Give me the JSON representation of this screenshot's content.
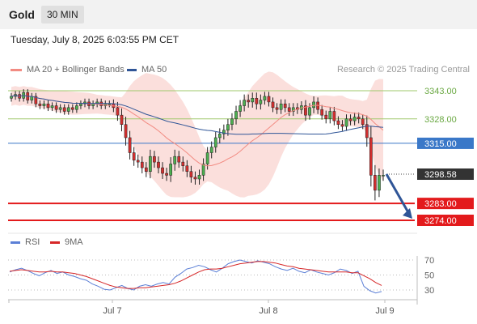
{
  "header": {
    "title": "Gold",
    "timeframe": "30 MIN"
  },
  "timestamp": "Tuesday, July 8, 2025 6:03:55 PM CET",
  "legend": {
    "ma20": {
      "label": "MA 20 + Bollinger Bands",
      "color": "#f28b82"
    },
    "ma50": {
      "label": "MA 50",
      "color": "#2f5597"
    }
  },
  "credit": "Research © 2025 Trading Central",
  "rsi_legend": {
    "rsi": {
      "label": "RSI",
      "color": "#5b7fd6"
    },
    "ma9": {
      "label": "9MA",
      "color": "#d62728"
    }
  },
  "chart_data": [
    {
      "type": "candlestick",
      "ylim": [
        3260,
        3360
      ],
      "x_ticks": [
        "Jul 7",
        "Jul 8",
        "Jul 9"
      ],
      "current_price": {
        "value": 3298.58,
        "label": "3298.58"
      },
      "levels": [
        {
          "value": 3343.0,
          "label": "3343.00",
          "kind": "resistance"
        },
        {
          "value": 3328.0,
          "label": "3328.00",
          "kind": "resistance"
        },
        {
          "value": 3315.0,
          "label": "3315.00",
          "kind": "pivot"
        },
        {
          "value": 3283.0,
          "label": "3283.00",
          "kind": "support"
        },
        {
          "value": 3274.0,
          "label": "3274.00",
          "kind": "support"
        }
      ],
      "forecast_arrow": {
        "from": 3298.58,
        "to": 3274.0
      },
      "close": [
        3340,
        3341,
        3339,
        3342,
        3338,
        3340,
        3336,
        3335,
        3336,
        3334,
        3335,
        3333,
        3334,
        3332,
        3334,
        3333,
        3335,
        3336,
        3337,
        3335,
        3336,
        3337,
        3335,
        3336,
        3336,
        3334,
        3330,
        3325,
        3318,
        3310,
        3306,
        3305,
        3302,
        3300,
        3308,
        3305,
        3302,
        3299,
        3298,
        3304,
        3308,
        3305,
        3303,
        3300,
        3297,
        3296,
        3298,
        3304,
        3310,
        3313,
        3318,
        3320,
        3322,
        3325,
        3328,
        3332,
        3335,
        3338,
        3337,
        3339,
        3336,
        3338,
        3340,
        3337,
        3334,
        3333,
        3336,
        3334,
        3332,
        3334,
        3333,
        3335,
        3330,
        3334,
        3337,
        3333,
        3330,
        3328,
        3332,
        3327,
        3325,
        3324,
        3328,
        3327,
        3329,
        3328,
        3325,
        3318,
        3298,
        3290,
        3298,
        3298
      ],
      "volatility": [
        3,
        3,
        3,
        3,
        3,
        3,
        3,
        3,
        3,
        3,
        3,
        3,
        3,
        3,
        3,
        3,
        3,
        3,
        3,
        3,
        3,
        3,
        3,
        3,
        3,
        4,
        5,
        6,
        7,
        6,
        5,
        5,
        5,
        5,
        6,
        5,
        5,
        5,
        5,
        6,
        6,
        5,
        5,
        5,
        5,
        5,
        5,
        5,
        5,
        5,
        5,
        5,
        5,
        5,
        5,
        5,
        5,
        5,
        5,
        5,
        5,
        5,
        4,
        4,
        4,
        4,
        4,
        4,
        4,
        4,
        4,
        4,
        5,
        4,
        5,
        4,
        4,
        4,
        4,
        4,
        4,
        4,
        4,
        4,
        4,
        4,
        4,
        8,
        10,
        9,
        6,
        5
      ]
    },
    {
      "type": "line",
      "title": "RSI",
      "ylim": [
        20,
        80
      ],
      "y_ticks": [
        70,
        50,
        30
      ],
      "series": [
        {
          "name": "RSI",
          "values": [
            54,
            57,
            59,
            56,
            52,
            49,
            53,
            56,
            52,
            54,
            50,
            48,
            45,
            43,
            38,
            35,
            31,
            30,
            33,
            36,
            32,
            30,
            35,
            37,
            35,
            38,
            40,
            38,
            47,
            52,
            58,
            60,
            63,
            61,
            57,
            54,
            59,
            65,
            68,
            70,
            68,
            66,
            69,
            67,
            65,
            61,
            58,
            56,
            59,
            55,
            53,
            57,
            54,
            52,
            50,
            53,
            58,
            56,
            52,
            55,
            35,
            29,
            26,
            28
          ]
        },
        {
          "name": "9MA",
          "values": [
            55,
            56,
            57,
            56,
            55,
            54,
            54,
            55,
            54,
            54,
            53,
            52,
            50,
            48,
            45,
            42,
            39,
            36,
            34,
            33,
            32,
            32,
            33,
            33,
            34,
            35,
            36,
            37,
            39,
            42,
            46,
            50,
            54,
            57,
            58,
            58,
            59,
            61,
            63,
            65,
            66,
            67,
            68,
            68,
            67,
            66,
            64,
            62,
            61,
            59,
            58,
            57,
            56,
            55,
            54,
            54,
            54,
            54,
            53,
            53,
            49,
            45,
            40,
            36
          ]
        }
      ]
    }
  ]
}
